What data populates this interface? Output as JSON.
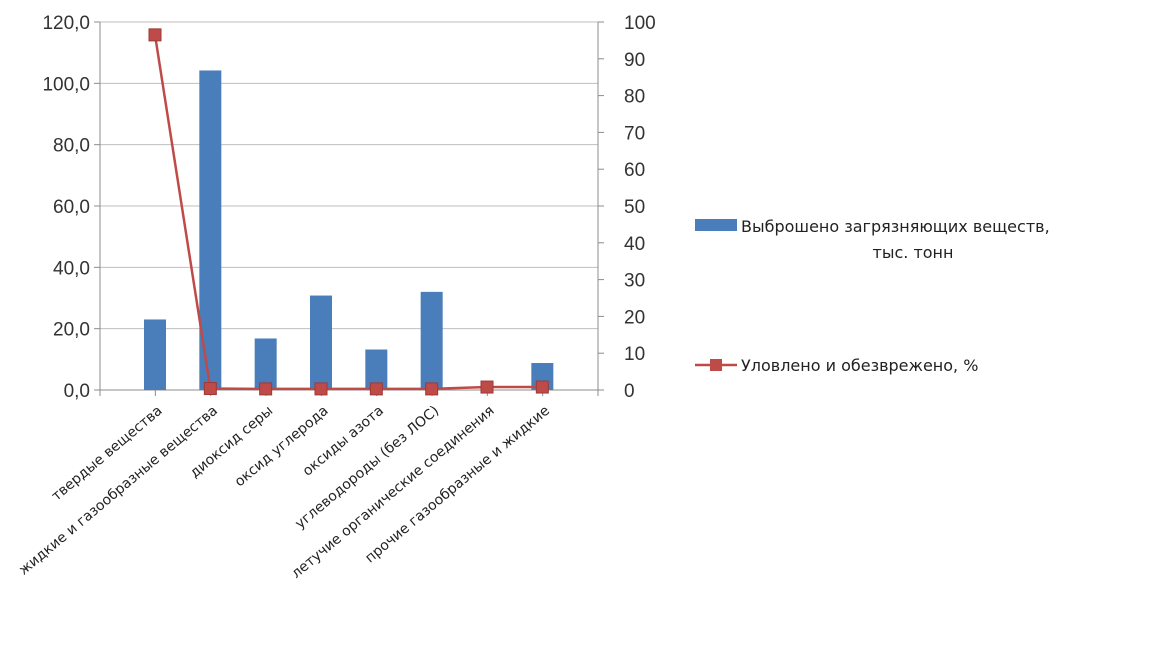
{
  "chart_data": {
    "type": "bar+line",
    "categories": [
      "твердые вещества",
      "жидкие и газообразные вещества",
      "диоксид серы",
      "оксид углерода",
      "оксиды азота",
      "углеводороды (без ЛОС)",
      "летучие органические соединения",
      "прочие газообразные  и жидкие"
    ],
    "series": [
      {
        "name_lines": [
          "Выброшено загрязняющих веществ,",
          "тыс. тонн"
        ],
        "type": "bar",
        "axis": "left",
        "color": "#4a7ebb",
        "values": [
          23.0,
          104.2,
          16.8,
          30.8,
          13.2,
          32.0,
          0.0,
          8.8
        ]
      },
      {
        "name": "Уловлено и обезврежено, %",
        "type": "line",
        "axis": "right",
        "color": "#be4b48",
        "values": [
          96.5,
          0.4,
          0.3,
          0.3,
          0.3,
          0.3,
          0.8,
          0.8
        ]
      }
    ],
    "left_axis": {
      "ylim": [
        0,
        120
      ],
      "ticks": [
        "0,0",
        "20,0",
        "40,0",
        "60,0",
        "80,0",
        "100,0",
        "120,0"
      ],
      "tick_values": [
        0,
        20,
        40,
        60,
        80,
        100,
        120
      ]
    },
    "right_axis": {
      "ylim": [
        0,
        100
      ],
      "ticks": [
        "0",
        "10",
        "20",
        "30",
        "40",
        "50",
        "60",
        "70",
        "80",
        "90",
        "100"
      ],
      "tick_values": [
        0,
        10,
        20,
        30,
        40,
        50,
        60,
        70,
        80,
        90,
        100
      ]
    },
    "grid": true,
    "legend": "right"
  }
}
